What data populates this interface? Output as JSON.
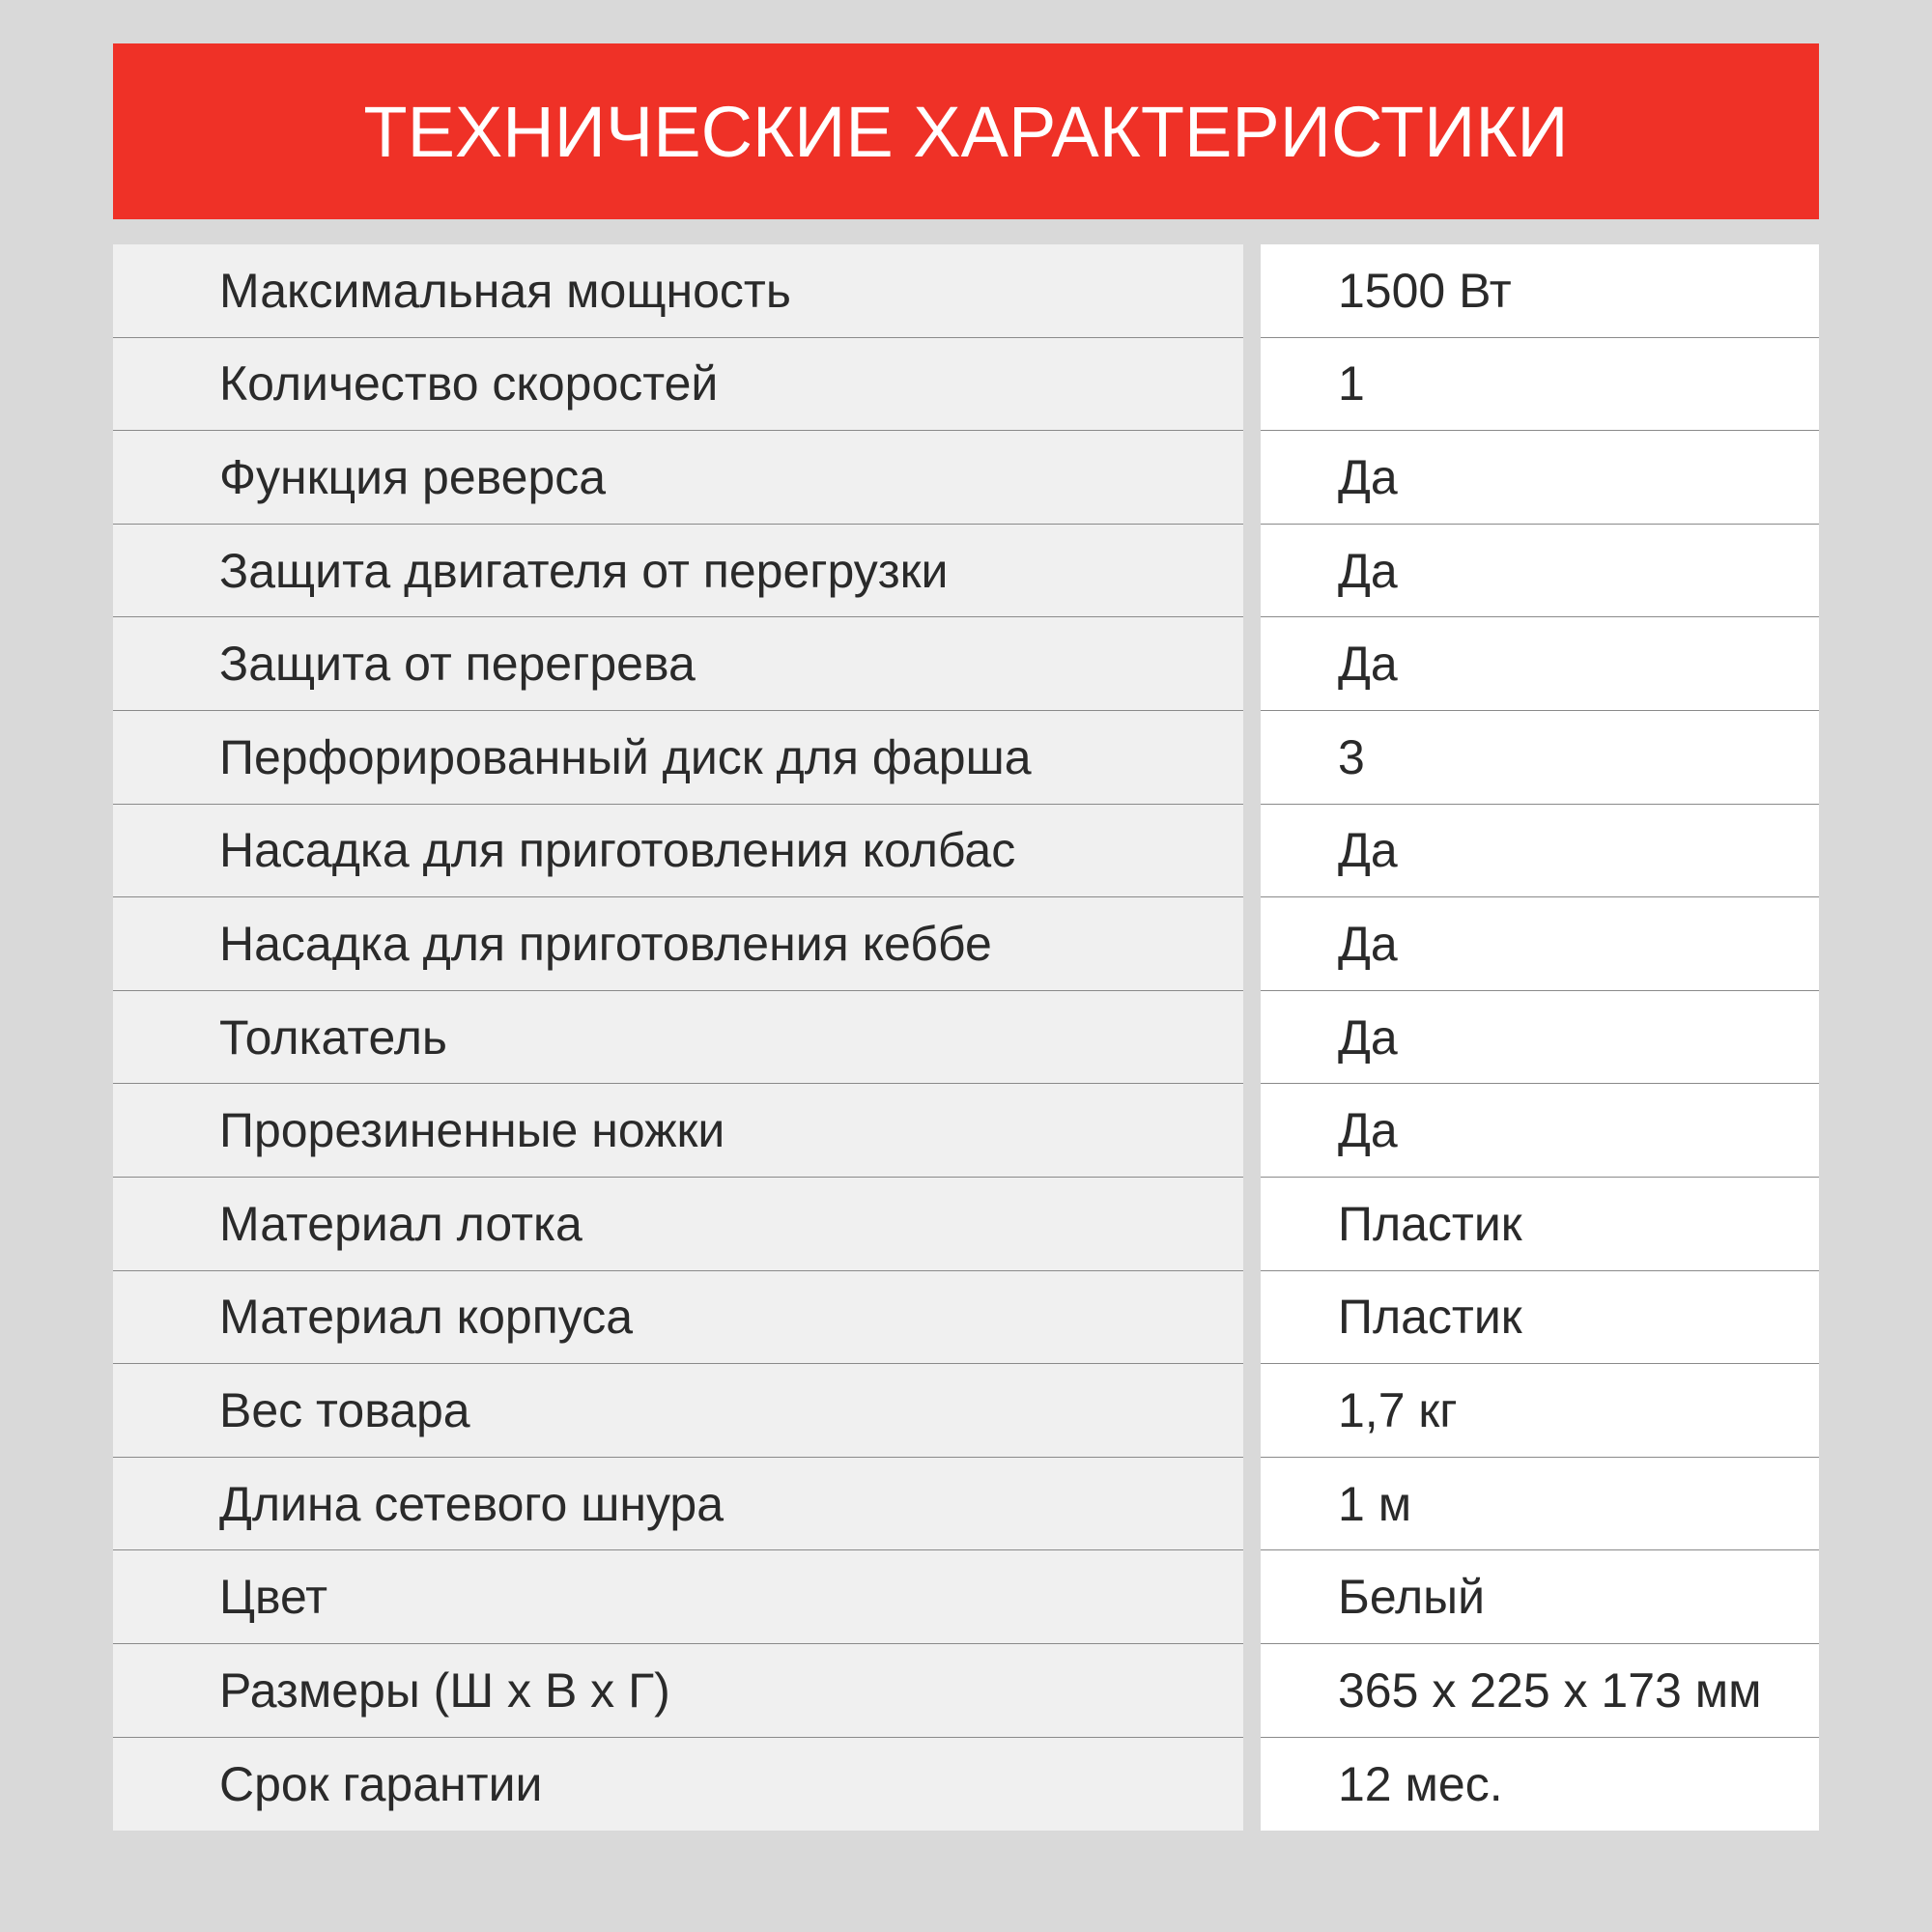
{
  "header": {
    "title": "ТЕХНИЧЕСКИЕ ХАРАКТЕРИСТИКИ"
  },
  "colors": {
    "accent": "#ef3127",
    "label_bg": "#f0f0f0",
    "value_bg": "#ffffff",
    "page_bg": "#d9d9d9"
  },
  "specs": [
    {
      "label": "Максимальная мощность",
      "value": "1500 Вт"
    },
    {
      "label": "Количество скоростей",
      "value": "1"
    },
    {
      "label": "Функция реверса",
      "value": "Да"
    },
    {
      "label": "Защита двигателя от перегрузки",
      "value": "Да"
    },
    {
      "label": "Защита от перегрева",
      "value": "Да"
    },
    {
      "label": "Перфорированный диск для фарша",
      "value": "3"
    },
    {
      "label": "Насадка для приготовления колбас",
      "value": "Да"
    },
    {
      "label": "Насадка для приготовления кеббе",
      "value": "Да"
    },
    {
      "label": "Толкатель",
      "value": "Да"
    },
    {
      "label": "Прорезиненные ножки",
      "value": "Да"
    },
    {
      "label": "Материал лотка",
      "value": "Пластик"
    },
    {
      "label": "Материал корпуса",
      "value": "Пластик"
    },
    {
      "label": "Вес товара",
      "value": "1,7 кг"
    },
    {
      "label": "Длина сетевого шнура",
      "value": "1 м"
    },
    {
      "label": "Цвет",
      "value": "Белый"
    },
    {
      "label": "Размеры (Ш х В х Г)",
      "value": "365 х 225 х 173 мм"
    },
    {
      "label": "Срок гарантии",
      "value": "12 мес."
    }
  ]
}
